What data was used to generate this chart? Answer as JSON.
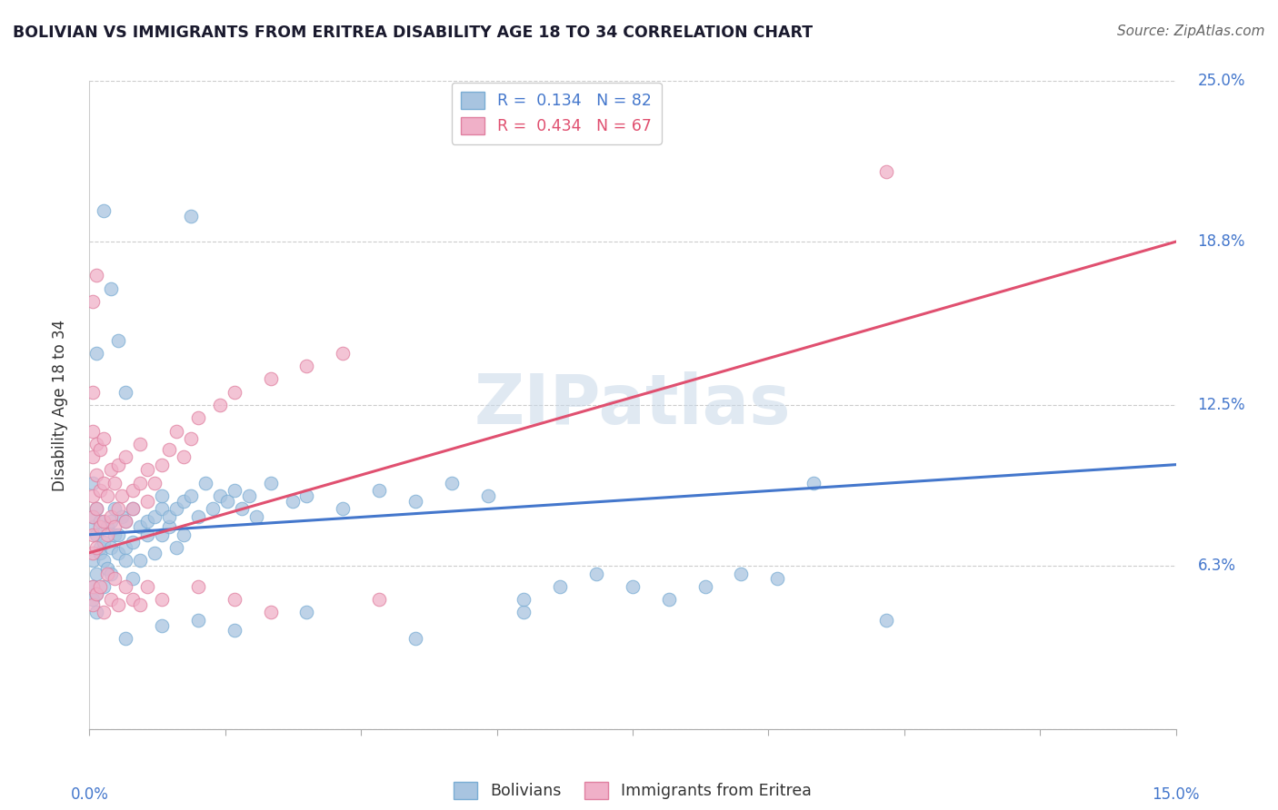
{
  "title": "BOLIVIAN VS IMMIGRANTS FROM ERITREA DISABILITY AGE 18 TO 34 CORRELATION CHART",
  "source": "Source: ZipAtlas.com",
  "ylabel": "Disability Age 18 to 34",
  "xlim": [
    0.0,
    15.0
  ],
  "ylim": [
    0.0,
    25.0
  ],
  "ytick_vals": [
    0.0,
    6.3,
    12.5,
    18.8,
    25.0
  ],
  "ytick_labels": [
    "",
    "6.3%",
    "12.5%",
    "18.8%",
    "25.0%"
  ],
  "blue_color": "#a8c4e0",
  "blue_edge": "#7aadd4",
  "pink_color": "#f0b0c8",
  "pink_edge": "#e080a0",
  "blue_line_color": "#4477cc",
  "pink_line_color": "#e05070",
  "r_bolivians": 0.134,
  "n_bolivians": 82,
  "r_eritrea": 0.434,
  "n_eritrea": 67,
  "watermark": "ZIPatlas",
  "blue_trend": [
    0.0,
    7.5,
    15.0,
    10.2
  ],
  "pink_trend": [
    0.0,
    6.8,
    15.0,
    18.8
  ],
  "blue_scatter": [
    [
      0.05,
      7.8
    ],
    [
      0.05,
      6.5
    ],
    [
      0.05,
      5.5
    ],
    [
      0.05,
      8.2
    ],
    [
      0.05,
      5.0
    ],
    [
      0.1,
      7.5
    ],
    [
      0.1,
      6.0
    ],
    [
      0.1,
      5.2
    ],
    [
      0.1,
      8.5
    ],
    [
      0.1,
      4.5
    ],
    [
      0.15,
      7.0
    ],
    [
      0.15,
      6.8
    ],
    [
      0.15,
      8.0
    ],
    [
      0.2,
      6.5
    ],
    [
      0.2,
      7.2
    ],
    [
      0.2,
      5.5
    ],
    [
      0.25,
      7.8
    ],
    [
      0.25,
      6.2
    ],
    [
      0.3,
      8.0
    ],
    [
      0.3,
      7.0
    ],
    [
      0.3,
      6.0
    ],
    [
      0.35,
      7.5
    ],
    [
      0.35,
      8.5
    ],
    [
      0.4,
      6.8
    ],
    [
      0.4,
      7.5
    ],
    [
      0.45,
      8.2
    ],
    [
      0.5,
      7.0
    ],
    [
      0.5,
      6.5
    ],
    [
      0.5,
      8.0
    ],
    [
      0.6,
      7.2
    ],
    [
      0.6,
      8.5
    ],
    [
      0.6,
      5.8
    ],
    [
      0.7,
      7.8
    ],
    [
      0.7,
      6.5
    ],
    [
      0.8,
      8.0
    ],
    [
      0.8,
      7.5
    ],
    [
      0.9,
      8.2
    ],
    [
      0.9,
      6.8
    ],
    [
      1.0,
      7.5
    ],
    [
      1.0,
      8.5
    ],
    [
      1.0,
      9.0
    ],
    [
      1.1,
      7.8
    ],
    [
      1.1,
      8.2
    ],
    [
      1.2,
      8.5
    ],
    [
      1.2,
      7.0
    ],
    [
      1.3,
      8.8
    ],
    [
      1.3,
      7.5
    ],
    [
      1.4,
      9.0
    ],
    [
      1.5,
      8.2
    ],
    [
      1.6,
      9.5
    ],
    [
      1.7,
      8.5
    ],
    [
      1.8,
      9.0
    ],
    [
      1.9,
      8.8
    ],
    [
      2.0,
      9.2
    ],
    [
      2.1,
      8.5
    ],
    [
      2.2,
      9.0
    ],
    [
      2.3,
      8.2
    ],
    [
      2.5,
      9.5
    ],
    [
      2.8,
      8.8
    ],
    [
      3.0,
      9.0
    ],
    [
      3.5,
      8.5
    ],
    [
      4.0,
      9.2
    ],
    [
      4.5,
      8.8
    ],
    [
      5.0,
      9.5
    ],
    [
      5.5,
      9.0
    ],
    [
      6.0,
      4.5
    ],
    [
      6.0,
      5.0
    ],
    [
      6.5,
      5.5
    ],
    [
      7.0,
      6.0
    ],
    [
      7.5,
      5.5
    ],
    [
      8.0,
      5.0
    ],
    [
      8.5,
      5.5
    ],
    [
      9.0,
      6.0
    ],
    [
      9.5,
      5.8
    ],
    [
      10.0,
      9.5
    ],
    [
      0.05,
      9.5
    ],
    [
      0.1,
      14.5
    ],
    [
      0.2,
      20.0
    ],
    [
      0.3,
      17.0
    ],
    [
      0.4,
      15.0
    ],
    [
      0.5,
      13.0
    ],
    [
      1.4,
      19.8
    ],
    [
      0.5,
      3.5
    ],
    [
      1.0,
      4.0
    ],
    [
      1.5,
      4.2
    ],
    [
      2.0,
      3.8
    ],
    [
      3.0,
      4.5
    ],
    [
      4.5,
      3.5
    ],
    [
      11.0,
      4.2
    ]
  ],
  "pink_scatter": [
    [
      0.05,
      7.5
    ],
    [
      0.05,
      6.8
    ],
    [
      0.05,
      8.2
    ],
    [
      0.05,
      9.0
    ],
    [
      0.05,
      10.5
    ],
    [
      0.05,
      5.5
    ],
    [
      0.05,
      11.5
    ],
    [
      0.05,
      13.0
    ],
    [
      0.1,
      7.0
    ],
    [
      0.1,
      8.5
    ],
    [
      0.1,
      9.8
    ],
    [
      0.1,
      11.0
    ],
    [
      0.15,
      7.8
    ],
    [
      0.15,
      9.2
    ],
    [
      0.15,
      10.8
    ],
    [
      0.2,
      8.0
    ],
    [
      0.2,
      9.5
    ],
    [
      0.2,
      11.2
    ],
    [
      0.25,
      7.5
    ],
    [
      0.25,
      9.0
    ],
    [
      0.3,
      8.2
    ],
    [
      0.3,
      10.0
    ],
    [
      0.35,
      7.8
    ],
    [
      0.35,
      9.5
    ],
    [
      0.4,
      8.5
    ],
    [
      0.4,
      10.2
    ],
    [
      0.45,
      9.0
    ],
    [
      0.5,
      8.0
    ],
    [
      0.5,
      10.5
    ],
    [
      0.6,
      8.5
    ],
    [
      0.6,
      9.2
    ],
    [
      0.7,
      9.5
    ],
    [
      0.7,
      11.0
    ],
    [
      0.8,
      10.0
    ],
    [
      0.8,
      8.8
    ],
    [
      0.9,
      9.5
    ],
    [
      1.0,
      10.2
    ],
    [
      1.1,
      10.8
    ],
    [
      1.2,
      11.5
    ],
    [
      1.3,
      10.5
    ],
    [
      1.4,
      11.2
    ],
    [
      1.5,
      12.0
    ],
    [
      1.8,
      12.5
    ],
    [
      2.0,
      13.0
    ],
    [
      2.5,
      13.5
    ],
    [
      3.0,
      14.0
    ],
    [
      3.5,
      14.5
    ],
    [
      0.05,
      16.5
    ],
    [
      0.1,
      17.5
    ],
    [
      0.05,
      4.8
    ],
    [
      0.1,
      5.2
    ],
    [
      0.15,
      5.5
    ],
    [
      0.2,
      4.5
    ],
    [
      0.25,
      6.0
    ],
    [
      0.3,
      5.0
    ],
    [
      0.35,
      5.8
    ],
    [
      0.4,
      4.8
    ],
    [
      0.5,
      5.5
    ],
    [
      0.6,
      5.0
    ],
    [
      0.7,
      4.8
    ],
    [
      0.8,
      5.5
    ],
    [
      1.0,
      5.0
    ],
    [
      1.5,
      5.5
    ],
    [
      2.0,
      5.0
    ],
    [
      2.5,
      4.5
    ],
    [
      4.0,
      5.0
    ],
    [
      11.0,
      21.5
    ]
  ]
}
